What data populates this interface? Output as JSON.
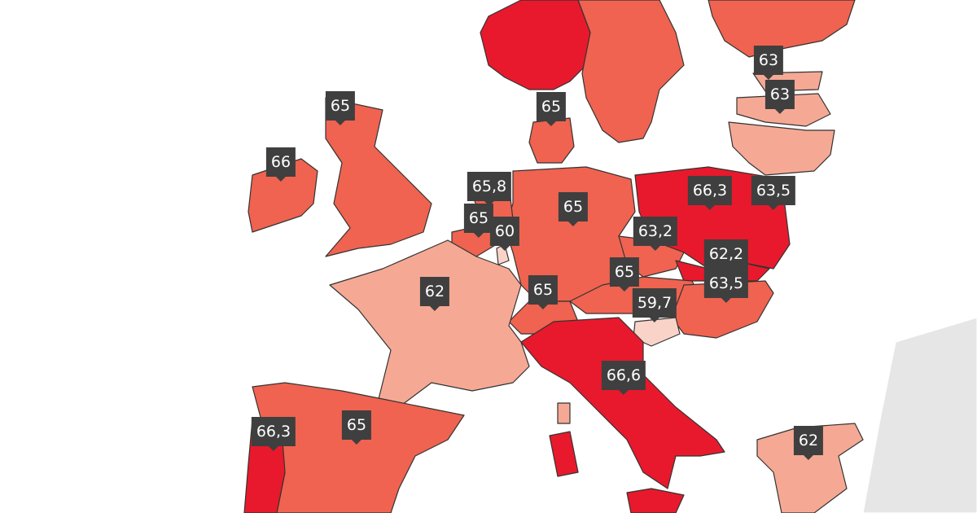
{
  "markers": [
    {
      "label": "63"
    },
    {
      "label": "63"
    },
    {
      "label": "65"
    },
    {
      "label": "65"
    },
    {
      "label": "66"
    },
    {
      "label": "65,8"
    },
    {
      "label": "66,3"
    },
    {
      "label": "63,5"
    },
    {
      "label": "65"
    },
    {
      "label": "65"
    },
    {
      "label": "60"
    },
    {
      "label": "63,2"
    },
    {
      "label": "62,2"
    },
    {
      "label": "62"
    },
    {
      "label": "65"
    },
    {
      "label": "65"
    },
    {
      "label": "63,5"
    },
    {
      "label": "59,7"
    },
    {
      "label": "66,6"
    },
    {
      "label": "65"
    },
    {
      "label": "66,3"
    },
    {
      "label": "62"
    }
  ]
}
